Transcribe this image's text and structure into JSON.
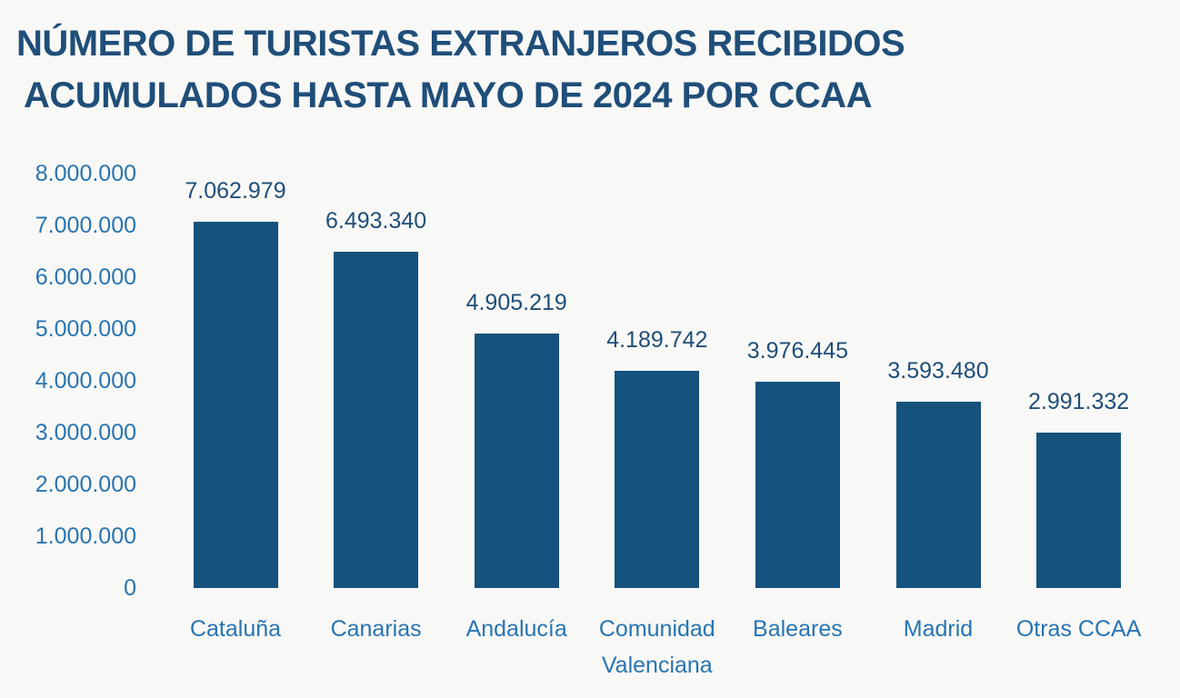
{
  "title": {
    "line1": "NÚMERO DE TURISTAS EXTRANJEROS RECIBIDOS",
    "line2": "ACUMULADOS HASTA MAYO DE 2024 POR CCAA"
  },
  "colors": {
    "background": "#F8F8F6",
    "bar": "#15527D",
    "title_text": "#1F4E79",
    "value_label_text": "#1F4E79",
    "axis_label_text": "#2874B2"
  },
  "chart_data": {
    "type": "bar",
    "title": "NÚMERO DE TURISTAS EXTRANJEROS RECIBIDOS ACUMULADOS HASTA MAYO DE 2024 POR CCAA",
    "categories": [
      "Cataluña",
      "Canarias",
      "Andalucía",
      "Comunidad Valenciana",
      "Baleares",
      "Madrid",
      "Otras CCAA"
    ],
    "values": [
      7062979,
      6493340,
      4905219,
      4189742,
      3976445,
      3593480,
      2991332
    ],
    "value_labels": [
      "7.062.979",
      "6.493.340",
      "4.905.219",
      "4.189.742",
      "3.976.445",
      "3.593.480",
      "2.991.332"
    ],
    "xlabel": "",
    "ylabel": "",
    "ylim": [
      0,
      8000000
    ],
    "y_ticks": [
      8000000,
      7000000,
      6000000,
      5000000,
      4000000,
      3000000,
      2000000,
      1000000,
      0
    ],
    "y_tick_labels": [
      "8.000.000",
      "7.000.000",
      "6.000.000",
      "5.000.000",
      "4.000.000",
      "3.000.000",
      "2.000.000",
      "1.000.000",
      "0"
    ],
    "grid": false,
    "legend": false,
    "bar_orientation": "vertical"
  }
}
